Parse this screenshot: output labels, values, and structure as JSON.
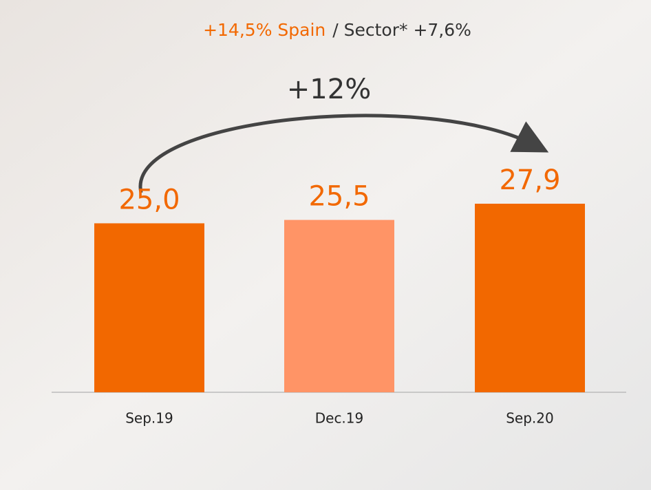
{
  "chart_data": {
    "type": "bar",
    "title": "+14,5% Spain",
    "subtitle": "/ Sector*  +7,6%",
    "annotation": "+12%",
    "categories": [
      "Sep.19",
      "Dec.19",
      "Sep.20"
    ],
    "values": [
      25.0,
      25.5,
      27.9
    ],
    "value_labels": [
      "25,0",
      "25,5",
      "27,9"
    ],
    "colors": [
      "#f26800",
      "#ff9466",
      "#f26800"
    ],
    "label_color": "#f26800"
  }
}
